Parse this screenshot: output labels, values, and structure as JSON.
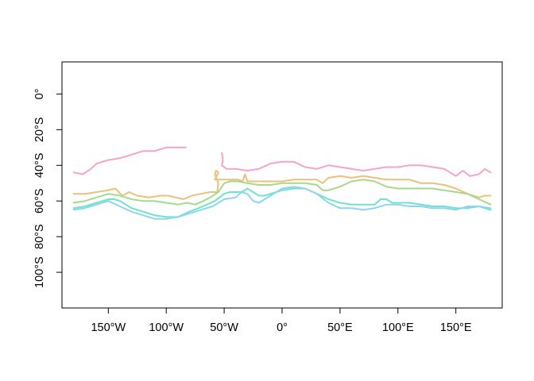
{
  "chart_data": {
    "type": "line",
    "title": "",
    "xlabel": "",
    "ylabel": "",
    "xlim": [
      -190,
      190
    ],
    "ylim": [
      -120,
      18
    ],
    "x_ticks": [
      {
        "value": -150,
        "label": "150°W"
      },
      {
        "value": -100,
        "label": "100°W"
      },
      {
        "value": -50,
        "label": "50°W"
      },
      {
        "value": 0,
        "label": "0°"
      },
      {
        "value": 50,
        "label": "50°E"
      },
      {
        "value": 100,
        "label": "100°E"
      },
      {
        "value": 150,
        "label": "150°E"
      }
    ],
    "y_ticks": [
      {
        "value": 0,
        "label": "0°"
      },
      {
        "value": -20,
        "label": "20°S"
      },
      {
        "value": -40,
        "label": "40°S"
      },
      {
        "value": -60,
        "label": "60°S"
      },
      {
        "value": -80,
        "label": "80°S"
      },
      {
        "value": -100,
        "label": "100°S"
      }
    ],
    "grid": false,
    "legend": "none",
    "series": [
      {
        "color": "#F5A3C7",
        "points": [
          [
            -180,
            -44
          ],
          [
            -172,
            -45
          ],
          [
            -165,
            -42
          ],
          [
            -160,
            -39
          ],
          [
            -150,
            -37
          ],
          [
            -140,
            -36
          ],
          [
            -130,
            -34
          ],
          [
            -120,
            -32
          ],
          [
            -110,
            -32
          ],
          [
            -100,
            -30
          ],
          [
            -92,
            -30
          ],
          [
            -83,
            -30
          ]
        ]
      },
      {
        "color": "#F5A3C7",
        "points": [
          [
            -52,
            -33
          ],
          [
            -51,
            -37
          ],
          [
            -52,
            -40
          ],
          [
            -48,
            -42
          ],
          [
            -40,
            -42
          ],
          [
            -30,
            -43
          ],
          [
            -20,
            -42
          ],
          [
            -10,
            -39
          ],
          [
            0,
            -38
          ],
          [
            10,
            -38
          ],
          [
            20,
            -41
          ],
          [
            30,
            -42
          ],
          [
            40,
            -40
          ],
          [
            50,
            -41
          ],
          [
            60,
            -42
          ],
          [
            70,
            -43
          ],
          [
            80,
            -42
          ],
          [
            90,
            -41
          ],
          [
            100,
            -41
          ],
          [
            110,
            -40
          ],
          [
            120,
            -40
          ],
          [
            130,
            -41
          ],
          [
            140,
            -42
          ],
          [
            150,
            -46
          ],
          [
            156,
            -43
          ],
          [
            162,
            -46
          ],
          [
            170,
            -45
          ],
          [
            175,
            -42
          ],
          [
            180,
            -44
          ]
        ]
      },
      {
        "color": "#E8C17A",
        "points": [
          [
            -180,
            -56
          ],
          [
            -170,
            -56
          ],
          [
            -160,
            -55
          ],
          [
            -150,
            -54
          ],
          [
            -144,
            -53
          ],
          [
            -138,
            -57
          ],
          [
            -132,
            -55
          ],
          [
            -125,
            -57
          ],
          [
            -115,
            -58
          ],
          [
            -105,
            -57
          ],
          [
            -98,
            -57
          ],
          [
            -92,
            -58
          ],
          [
            -85,
            -59
          ],
          [
            -78,
            -57
          ],
          [
            -70,
            -56
          ],
          [
            -62,
            -55
          ],
          [
            -56,
            -55
          ],
          [
            -55,
            -50
          ],
          [
            -58,
            -45
          ],
          [
            -57,
            -43
          ],
          [
            -55,
            -44
          ],
          [
            -58,
            -48
          ],
          [
            -45,
            -48
          ],
          [
            -38,
            -48
          ],
          [
            -34,
            -49
          ],
          [
            -32,
            -45
          ],
          [
            -30,
            -49
          ],
          [
            -20,
            -49
          ],
          [
            -10,
            -49
          ],
          [
            0,
            -49
          ],
          [
            10,
            -48
          ],
          [
            20,
            -48
          ],
          [
            30,
            -48
          ],
          [
            35,
            -50
          ],
          [
            40,
            -47
          ],
          [
            50,
            -46
          ],
          [
            60,
            -47
          ],
          [
            70,
            -46
          ],
          [
            80,
            -47
          ],
          [
            90,
            -48
          ],
          [
            100,
            -48
          ],
          [
            110,
            -48
          ],
          [
            120,
            -50
          ],
          [
            130,
            -50
          ],
          [
            140,
            -51
          ],
          [
            150,
            -53
          ],
          [
            160,
            -56
          ],
          [
            170,
            -58
          ],
          [
            175,
            -57
          ],
          [
            180,
            -57
          ]
        ]
      },
      {
        "color": "#A6D98C",
        "points": [
          [
            -180,
            -61
          ],
          [
            -170,
            -60
          ],
          [
            -160,
            -58
          ],
          [
            -150,
            -56
          ],
          [
            -140,
            -57
          ],
          [
            -130,
            -59
          ],
          [
            -120,
            -60
          ],
          [
            -110,
            -60
          ],
          [
            -100,
            -61
          ],
          [
            -90,
            -62
          ],
          [
            -82,
            -61
          ],
          [
            -75,
            -62
          ],
          [
            -68,
            -60
          ],
          [
            -62,
            -58
          ],
          [
            -55,
            -55
          ],
          [
            -50,
            -50
          ],
          [
            -45,
            -49
          ],
          [
            -38,
            -49
          ],
          [
            -30,
            -50
          ],
          [
            -20,
            -51
          ],
          [
            -10,
            -51
          ],
          [
            0,
            -50
          ],
          [
            10,
            -50
          ],
          [
            20,
            -50
          ],
          [
            30,
            -51
          ],
          [
            35,
            -54
          ],
          [
            40,
            -54
          ],
          [
            50,
            -52
          ],
          [
            60,
            -49
          ],
          [
            70,
            -48
          ],
          [
            80,
            -49
          ],
          [
            90,
            -52
          ],
          [
            100,
            -53
          ],
          [
            110,
            -53
          ],
          [
            120,
            -53
          ],
          [
            130,
            -53
          ],
          [
            140,
            -54
          ],
          [
            150,
            -55
          ],
          [
            160,
            -56
          ],
          [
            170,
            -59
          ],
          [
            180,
            -62
          ]
        ]
      },
      {
        "color": "#6EE3CC",
        "points": [
          [
            -180,
            -64
          ],
          [
            -170,
            -63
          ],
          [
            -160,
            -61
          ],
          [
            -150,
            -59
          ],
          [
            -145,
            -59
          ],
          [
            -140,
            -60
          ],
          [
            -135,
            -62
          ],
          [
            -130,
            -64
          ],
          [
            -120,
            -66
          ],
          [
            -110,
            -68
          ],
          [
            -100,
            -69
          ],
          [
            -90,
            -69
          ],
          [
            -80,
            -66
          ],
          [
            -72,
            -64
          ],
          [
            -65,
            -62
          ],
          [
            -58,
            -60
          ],
          [
            -50,
            -56
          ],
          [
            -45,
            -55
          ],
          [
            -40,
            -55
          ],
          [
            -35,
            -55
          ],
          [
            -30,
            -53
          ],
          [
            -25,
            -55
          ],
          [
            -20,
            -57
          ],
          [
            -15,
            -57
          ],
          [
            -10,
            -56
          ],
          [
            -5,
            -55
          ],
          [
            0,
            -54
          ],
          [
            10,
            -53
          ],
          [
            20,
            -53
          ],
          [
            30,
            -56
          ],
          [
            40,
            -59
          ],
          [
            50,
            -61
          ],
          [
            60,
            -62
          ],
          [
            70,
            -62
          ],
          [
            80,
            -62
          ],
          [
            85,
            -59
          ],
          [
            90,
            -59
          ],
          [
            95,
            -61
          ],
          [
            100,
            -61
          ],
          [
            110,
            -61
          ],
          [
            120,
            -62
          ],
          [
            130,
            -63
          ],
          [
            140,
            -63
          ],
          [
            150,
            -64
          ],
          [
            160,
            -64
          ],
          [
            170,
            -63
          ],
          [
            180,
            -65
          ]
        ]
      },
      {
        "color": "#8FD4F2",
        "points": [
          [
            -180,
            -65
          ],
          [
            -170,
            -64
          ],
          [
            -160,
            -62
          ],
          [
            -150,
            -60
          ],
          [
            -140,
            -63
          ],
          [
            -130,
            -66
          ],
          [
            -120,
            -68
          ],
          [
            -110,
            -70
          ],
          [
            -100,
            -70
          ],
          [
            -90,
            -69
          ],
          [
            -80,
            -67
          ],
          [
            -70,
            -65
          ],
          [
            -60,
            -63
          ],
          [
            -50,
            -59
          ],
          [
            -40,
            -58
          ],
          [
            -35,
            -55
          ],
          [
            -30,
            -56
          ],
          [
            -25,
            -60
          ],
          [
            -20,
            -61
          ],
          [
            -15,
            -59
          ],
          [
            -10,
            -57
          ],
          [
            -5,
            -55
          ],
          [
            0,
            -53
          ],
          [
            10,
            -52
          ],
          [
            20,
            -53
          ],
          [
            30,
            -56
          ],
          [
            40,
            -61
          ],
          [
            50,
            -64
          ],
          [
            60,
            -64
          ],
          [
            70,
            -65
          ],
          [
            80,
            -64
          ],
          [
            90,
            -62
          ],
          [
            100,
            -62
          ],
          [
            110,
            -63
          ],
          [
            120,
            -63
          ],
          [
            130,
            -64
          ],
          [
            140,
            -64
          ],
          [
            150,
            -65
          ],
          [
            160,
            -63
          ],
          [
            170,
            -63
          ],
          [
            180,
            -64
          ]
        ]
      }
    ]
  }
}
